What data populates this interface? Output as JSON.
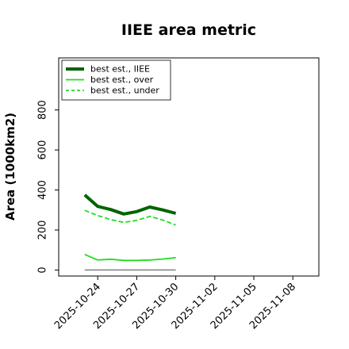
{
  "chart_data": {
    "type": "line",
    "title": "IIEE area metric",
    "xlabel": "",
    "ylabel": "Area (1000km2)",
    "x_ticks": [
      "2025-10-24",
      "2025-10-27",
      "2025-10-30",
      "2025-11-02",
      "2025-11-05",
      "2025-11-08"
    ],
    "xlim": [
      "2025-10-21",
      "2025-11-10"
    ],
    "y_ticks": [
      0,
      200,
      400,
      600,
      800
    ],
    "ylim": [
      -30,
      1060
    ],
    "grid": false,
    "legend_position": "top-left",
    "x": [
      "2025-10-23",
      "2025-10-24",
      "2025-10-25",
      "2025-10-26",
      "2025-10-27",
      "2025-10-28",
      "2025-10-29",
      "2025-10-30"
    ],
    "series": [
      {
        "name": "best est., IIEE",
        "color": "#006400",
        "style": "solid",
        "width": 4,
        "values": [
          375,
          318,
          302,
          280,
          292,
          315,
          300,
          283
        ]
      },
      {
        "name": "best est., over",
        "color": "#22dd22",
        "style": "solid",
        "width": 1.8,
        "values": [
          78,
          50,
          54,
          48,
          48,
          50,
          55,
          62
        ]
      },
      {
        "name": "best est., under",
        "color": "#22dd22",
        "style": "dashed",
        "width": 1.8,
        "values": [
          298,
          272,
          252,
          238,
          248,
          268,
          250,
          225
        ]
      }
    ],
    "reference_line": {
      "color": "#808080",
      "x": [
        "2025-10-23",
        "2025-10-30"
      ],
      "y": 0
    }
  }
}
